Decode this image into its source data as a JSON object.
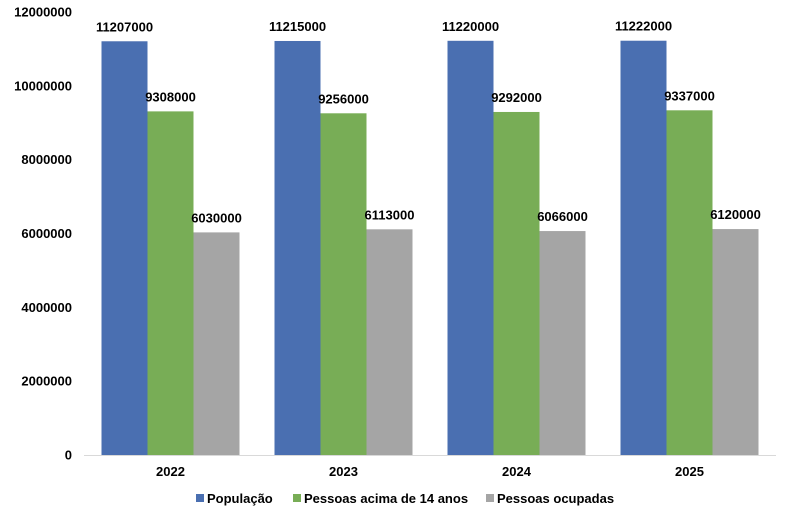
{
  "chart_data": {
    "type": "bar",
    "title": "",
    "xlabel": "",
    "ylabel": "",
    "categories": [
      "2022",
      "2023",
      "2024",
      "2025"
    ],
    "series": [
      {
        "name": "População",
        "color": "#4a6fb1",
        "values": [
          11207000,
          11215000,
          11220000,
          11222000
        ]
      },
      {
        "name": "Pessoas acima de 14 anos",
        "color": "#78ad56",
        "values": [
          9308000,
          9256000,
          9292000,
          9337000
        ]
      },
      {
        "name": "Pessoas ocupadas",
        "color": "#a5a5a5",
        "values": [
          6030000,
          6113000,
          6066000,
          6120000
        ]
      }
    ],
    "ylim": [
      0,
      12000000
    ],
    "yticks": [
      "0",
      "2000000",
      "4000000",
      "6000000",
      "8000000",
      "10000000",
      "12000000"
    ],
    "grid": false,
    "legend_position": "bottom",
    "data_labels": true
  }
}
